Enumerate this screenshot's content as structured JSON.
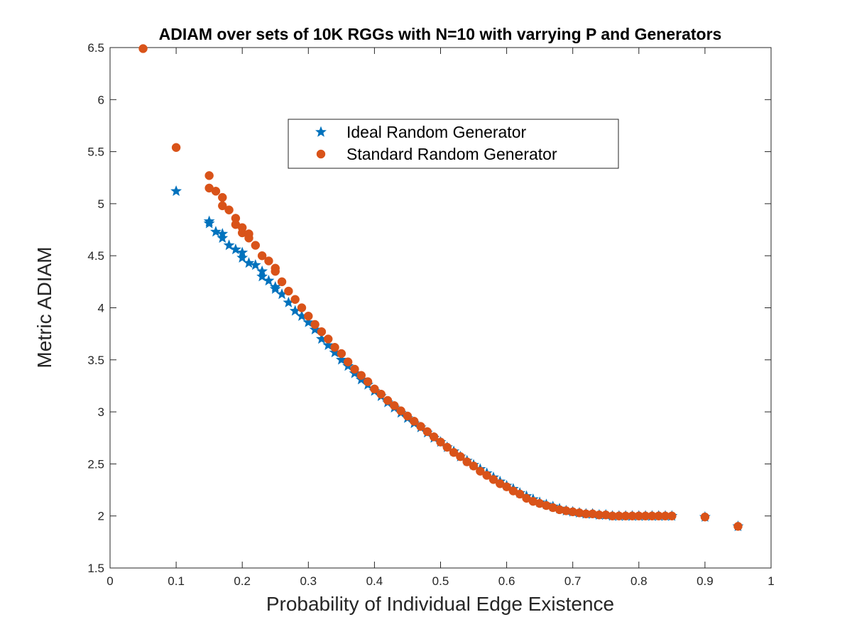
{
  "chart_data": {
    "type": "scatter",
    "title": "ADIAM over sets of 10K RGGs with N=10 with varrying P and Generators",
    "xlabel": "Probability of Individual Edge Existence",
    "ylabel": "Metric ADIAM",
    "xlim": [
      0,
      1
    ],
    "ylim": [
      1.5,
      6.5
    ],
    "xticks": [
      "0",
      "0.1",
      "0.2",
      "0.3",
      "0.4",
      "0.5",
      "0.6",
      "0.7",
      "0.8",
      "0.9",
      "1"
    ],
    "yticks": [
      "1.5",
      "2",
      "2.5",
      "3",
      "3.5",
      "4",
      "4.5",
      "5",
      "5.5",
      "6",
      "6.5"
    ],
    "grid": false,
    "legend_position": "top-center",
    "series": [
      {
        "name": "Ideal Random Generator",
        "marker": "star",
        "color": "#0072BD",
        "x": [
          0.1,
          0.15,
          0.15,
          0.16,
          0.17,
          0.17,
          0.18,
          0.19,
          0.2,
          0.2,
          0.21,
          0.22,
          0.23,
          0.23,
          0.24,
          0.25,
          0.25,
          0.26,
          0.27,
          0.28,
          0.29,
          0.3,
          0.31,
          0.32,
          0.33,
          0.34,
          0.35,
          0.36,
          0.37,
          0.38,
          0.39,
          0.4,
          0.41,
          0.42,
          0.43,
          0.44,
          0.45,
          0.46,
          0.47,
          0.48,
          0.49,
          0.5,
          0.51,
          0.52,
          0.53,
          0.54,
          0.55,
          0.56,
          0.57,
          0.58,
          0.59,
          0.6,
          0.61,
          0.62,
          0.63,
          0.64,
          0.65,
          0.66,
          0.67,
          0.68,
          0.69,
          0.7,
          0.71,
          0.72,
          0.73,
          0.74,
          0.75,
          0.76,
          0.77,
          0.78,
          0.79,
          0.8,
          0.81,
          0.82,
          0.83,
          0.84,
          0.85,
          0.9,
          0.95
        ],
        "y": [
          5.12,
          4.83,
          4.81,
          4.73,
          4.71,
          4.67,
          4.6,
          4.56,
          4.53,
          4.48,
          4.43,
          4.41,
          4.35,
          4.3,
          4.26,
          4.2,
          4.18,
          4.13,
          4.05,
          3.97,
          3.92,
          3.86,
          3.79,
          3.7,
          3.64,
          3.57,
          3.5,
          3.44,
          3.37,
          3.31,
          3.26,
          3.2,
          3.15,
          3.09,
          3.04,
          2.99,
          2.94,
          2.89,
          2.85,
          2.8,
          2.75,
          2.71,
          2.66,
          2.62,
          2.57,
          2.53,
          2.49,
          2.45,
          2.41,
          2.37,
          2.33,
          2.29,
          2.26,
          2.22,
          2.19,
          2.16,
          2.13,
          2.11,
          2.09,
          2.07,
          2.05,
          2.04,
          2.03,
          2.02,
          2.02,
          2.01,
          2.01,
          2.0,
          2.0,
          2.0,
          2.0,
          2.0,
          2.0,
          2.0,
          2.0,
          2.0,
          2.0,
          1.99,
          1.9
        ]
      },
      {
        "name": "Standard Random Generator",
        "marker": "circle",
        "color": "#D95319",
        "x": [
          0.05,
          0.1,
          0.15,
          0.15,
          0.16,
          0.17,
          0.17,
          0.18,
          0.19,
          0.19,
          0.2,
          0.2,
          0.21,
          0.21,
          0.22,
          0.23,
          0.24,
          0.25,
          0.25,
          0.26,
          0.27,
          0.28,
          0.29,
          0.3,
          0.31,
          0.32,
          0.33,
          0.34,
          0.35,
          0.36,
          0.37,
          0.38,
          0.39,
          0.4,
          0.41,
          0.42,
          0.43,
          0.44,
          0.45,
          0.46,
          0.47,
          0.48,
          0.49,
          0.5,
          0.51,
          0.52,
          0.53,
          0.54,
          0.55,
          0.56,
          0.57,
          0.58,
          0.59,
          0.6,
          0.61,
          0.62,
          0.63,
          0.64,
          0.65,
          0.66,
          0.67,
          0.68,
          0.69,
          0.7,
          0.71,
          0.72,
          0.73,
          0.74,
          0.75,
          0.76,
          0.77,
          0.78,
          0.79,
          0.8,
          0.81,
          0.82,
          0.83,
          0.84,
          0.85,
          0.9,
          0.95
        ],
        "y": [
          6.49,
          5.54,
          5.27,
          5.15,
          5.12,
          5.06,
          4.98,
          4.94,
          4.86,
          4.8,
          4.77,
          4.72,
          4.71,
          4.67,
          4.6,
          4.5,
          4.45,
          4.38,
          4.35,
          4.25,
          4.16,
          4.08,
          4.0,
          3.92,
          3.84,
          3.77,
          3.7,
          3.62,
          3.56,
          3.48,
          3.41,
          3.35,
          3.29,
          3.22,
          3.17,
          3.11,
          3.06,
          3.01,
          2.96,
          2.91,
          2.86,
          2.81,
          2.76,
          2.71,
          2.66,
          2.61,
          2.57,
          2.52,
          2.48,
          2.43,
          2.39,
          2.35,
          2.31,
          2.28,
          2.24,
          2.21,
          2.17,
          2.14,
          2.12,
          2.1,
          2.08,
          2.06,
          2.05,
          2.04,
          2.03,
          2.02,
          2.02,
          2.01,
          2.01,
          2.0,
          2.0,
          2.0,
          2.0,
          2.0,
          2.0,
          2.0,
          2.0,
          2.0,
          2.0,
          1.99,
          1.9
        ]
      }
    ]
  }
}
